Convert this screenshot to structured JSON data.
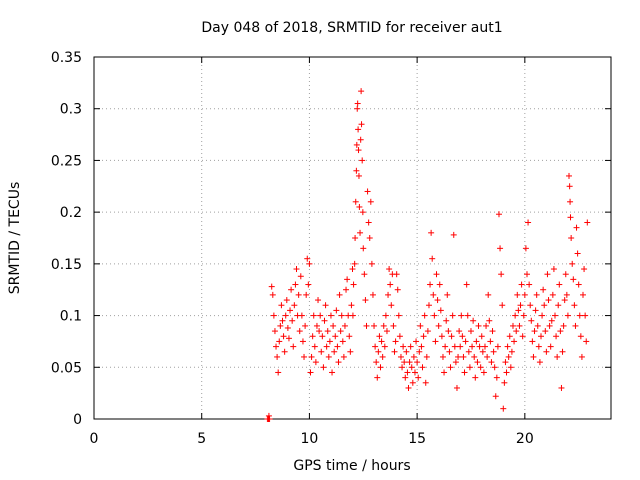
{
  "chart_data": {
    "type": "scatter",
    "title": "Day 048 of 2018, SRMTID for receiver aut1",
    "xlabel": "GPS time / hours",
    "ylabel": "SRMTID / TECUs",
    "xlim": [
      0,
      24
    ],
    "ylim": [
      0,
      0.35
    ],
    "xticks": [
      0,
      5,
      10,
      15,
      20
    ],
    "xtick_labels": [
      "0",
      "5",
      "10",
      "15",
      "20"
    ],
    "yticks": [
      0,
      0.05,
      0.1,
      0.15,
      0.2,
      0.25,
      0.3,
      0.35
    ],
    "ytick_labels": [
      "0",
      "0.05",
      "0.1",
      "0.15",
      "0.2",
      "0.25",
      "0.3",
      "0.35"
    ],
    "grid": true,
    "marker": "plus",
    "color": "#ff0000",
    "series": [
      {
        "name": "SRMTID",
        "points": [
          [
            8.05,
            0.0
          ],
          [
            8.1,
            0.0
          ],
          [
            8.15,
            0.0
          ],
          [
            8.12,
            0.003
          ],
          [
            8.25,
            0.128
          ],
          [
            8.3,
            0.12
          ],
          [
            8.35,
            0.1
          ],
          [
            8.4,
            0.085
          ],
          [
            8.45,
            0.07
          ],
          [
            8.5,
            0.06
          ],
          [
            8.55,
            0.045
          ],
          [
            8.6,
            0.075
          ],
          [
            8.65,
            0.09
          ],
          [
            8.7,
            0.11
          ],
          [
            8.75,
            0.095
          ],
          [
            8.8,
            0.08
          ],
          [
            8.85,
            0.065
          ],
          [
            8.9,
            0.1
          ],
          [
            8.95,
            0.115
          ],
          [
            9.0,
            0.088
          ],
          [
            9.05,
            0.078
          ],
          [
            9.1,
            0.105
          ],
          [
            9.15,
            0.125
          ],
          [
            9.2,
            0.095
          ],
          [
            9.25,
            0.07
          ],
          [
            9.3,
            0.11
          ],
          [
            9.35,
            0.13
          ],
          [
            9.4,
            0.145
          ],
          [
            9.45,
            0.1
          ],
          [
            9.5,
            0.12
          ],
          [
            9.55,
            0.085
          ],
          [
            9.6,
            0.138
          ],
          [
            9.65,
            0.1
          ],
          [
            9.7,
            0.075
          ],
          [
            9.75,
            0.06
          ],
          [
            9.8,
            0.09
          ],
          [
            9.85,
            0.12
          ],
          [
            9.9,
            0.155
          ],
          [
            9.95,
            0.13
          ],
          [
            10.0,
            0.15
          ],
          [
            10.05,
            0.045
          ],
          [
            10.1,
            0.06
          ],
          [
            10.15,
            0.08
          ],
          [
            10.2,
            0.1
          ],
          [
            10.25,
            0.07
          ],
          [
            10.3,
            0.055
          ],
          [
            10.35,
            0.09
          ],
          [
            10.4,
            0.115
          ],
          [
            10.45,
            0.085
          ],
          [
            10.5,
            0.1
          ],
          [
            10.55,
            0.065
          ],
          [
            10.6,
            0.08
          ],
          [
            10.65,
            0.05
          ],
          [
            10.7,
            0.095
          ],
          [
            10.75,
            0.11
          ],
          [
            10.8,
            0.07
          ],
          [
            10.85,
            0.085
          ],
          [
            10.9,
            0.06
          ],
          [
            10.95,
            0.075
          ],
          [
            11.0,
            0.1
          ],
          [
            11.05,
            0.045
          ],
          [
            11.1,
            0.09
          ],
          [
            11.15,
            0.065
          ],
          [
            11.2,
            0.08
          ],
          [
            11.25,
            0.105
          ],
          [
            11.3,
            0.07
          ],
          [
            11.35,
            0.055
          ],
          [
            11.4,
            0.12
          ],
          [
            11.45,
            0.085
          ],
          [
            11.5,
            0.1
          ],
          [
            11.55,
            0.075
          ],
          [
            11.6,
            0.06
          ],
          [
            11.65,
            0.09
          ],
          [
            11.7,
            0.125
          ],
          [
            11.75,
            0.135
          ],
          [
            11.8,
            0.1
          ],
          [
            11.85,
            0.08
          ],
          [
            11.9,
            0.065
          ],
          [
            11.95,
            0.11
          ],
          [
            12.0,
            0.145
          ],
          [
            12.02,
            0.1
          ],
          [
            12.05,
            0.13
          ],
          [
            12.1,
            0.15
          ],
          [
            12.12,
            0.175
          ],
          [
            12.15,
            0.21
          ],
          [
            12.18,
            0.24
          ],
          [
            12.2,
            0.265
          ],
          [
            12.22,
            0.3
          ],
          [
            12.24,
            0.305
          ],
          [
            12.26,
            0.28
          ],
          [
            12.28,
            0.26
          ],
          [
            12.3,
            0.235
          ],
          [
            12.32,
            0.205
          ],
          [
            12.35,
            0.18
          ],
          [
            12.38,
            0.27
          ],
          [
            12.4,
            0.317
          ],
          [
            12.42,
            0.285
          ],
          [
            12.45,
            0.25
          ],
          [
            12.48,
            0.2
          ],
          [
            12.5,
            0.165
          ],
          [
            12.55,
            0.14
          ],
          [
            12.6,
            0.115
          ],
          [
            12.65,
            0.09
          ],
          [
            12.7,
            0.22
          ],
          [
            12.75,
            0.19
          ],
          [
            12.8,
            0.175
          ],
          [
            12.85,
            0.21
          ],
          [
            12.9,
            0.15
          ],
          [
            12.95,
            0.12
          ],
          [
            13.0,
            0.09
          ],
          [
            13.05,
            0.07
          ],
          [
            13.1,
            0.055
          ],
          [
            13.15,
            0.04
          ],
          [
            13.2,
            0.065
          ],
          [
            13.25,
            0.08
          ],
          [
            13.3,
            0.05
          ],
          [
            13.35,
            0.075
          ],
          [
            13.4,
            0.06
          ],
          [
            13.45,
            0.09
          ],
          [
            13.5,
            0.07
          ],
          [
            13.55,
            0.1
          ],
          [
            13.6,
            0.085
          ],
          [
            13.65,
            0.12
          ],
          [
            13.7,
            0.145
          ],
          [
            13.75,
            0.13
          ],
          [
            13.8,
            0.11
          ],
          [
            13.85,
            0.14
          ],
          [
            13.9,
            0.09
          ],
          [
            13.95,
            0.065
          ],
          [
            14.0,
            0.075
          ],
          [
            14.05,
            0.14
          ],
          [
            14.1,
            0.125
          ],
          [
            14.15,
            0.1
          ],
          [
            14.2,
            0.08
          ],
          [
            14.25,
            0.06
          ],
          [
            14.3,
            0.05
          ],
          [
            14.35,
            0.07
          ],
          [
            14.4,
            0.055
          ],
          [
            14.45,
            0.04
          ],
          [
            14.5,
            0.065
          ],
          [
            14.55,
            0.045
          ],
          [
            14.6,
            0.03
          ],
          [
            14.65,
            0.055
          ],
          [
            14.7,
            0.07
          ],
          [
            14.75,
            0.05
          ],
          [
            14.8,
            0.035
          ],
          [
            14.85,
            0.06
          ],
          [
            14.9,
            0.045
          ],
          [
            14.95,
            0.075
          ],
          [
            15.0,
            0.055
          ],
          [
            15.05,
            0.04
          ],
          [
            15.1,
            0.065
          ],
          [
            15.15,
            0.09
          ],
          [
            15.2,
            0.07
          ],
          [
            15.25,
            0.05
          ],
          [
            15.3,
            0.08
          ],
          [
            15.35,
            0.1
          ],
          [
            15.4,
            0.035
          ],
          [
            15.45,
            0.06
          ],
          [
            15.5,
            0.085
          ],
          [
            15.55,
            0.11
          ],
          [
            15.6,
            0.13
          ],
          [
            15.65,
            0.18
          ],
          [
            15.7,
            0.155
          ],
          [
            15.75,
            0.12
          ],
          [
            15.8,
            0.1
          ],
          [
            15.85,
            0.075
          ],
          [
            15.9,
            0.14
          ],
          [
            15.95,
            0.115
          ],
          [
            16.0,
            0.09
          ],
          [
            16.05,
            0.13
          ],
          [
            16.1,
            0.105
          ],
          [
            16.15,
            0.08
          ],
          [
            16.2,
            0.06
          ],
          [
            16.25,
            0.045
          ],
          [
            16.3,
            0.07
          ],
          [
            16.35,
            0.095
          ],
          [
            16.4,
            0.12
          ],
          [
            16.45,
            0.085
          ],
          [
            16.5,
            0.065
          ],
          [
            16.55,
            0.05
          ],
          [
            16.6,
            0.08
          ],
          [
            16.65,
            0.1
          ],
          [
            16.7,
            0.178
          ],
          [
            16.75,
            0.07
          ],
          [
            16.8,
            0.055
          ],
          [
            16.85,
            0.03
          ],
          [
            16.9,
            0.06
          ],
          [
            16.95,
            0.085
          ],
          [
            17.0,
            0.07
          ],
          [
            17.05,
            0.1
          ],
          [
            17.1,
            0.08
          ],
          [
            17.15,
            0.06
          ],
          [
            17.2,
            0.045
          ],
          [
            17.25,
            0.075
          ],
          [
            17.3,
            0.13
          ],
          [
            17.35,
            0.1
          ],
          [
            17.4,
            0.065
          ],
          [
            17.45,
            0.05
          ],
          [
            17.5,
            0.085
          ],
          [
            17.55,
            0.07
          ],
          [
            17.6,
            0.095
          ],
          [
            17.65,
            0.06
          ],
          [
            17.7,
            0.04
          ],
          [
            17.75,
            0.075
          ],
          [
            17.8,
            0.055
          ],
          [
            17.85,
            0.09
          ],
          [
            17.9,
            0.07
          ],
          [
            17.95,
            0.05
          ],
          [
            18.0,
            0.08
          ],
          [
            18.05,
            0.065
          ],
          [
            18.1,
            0.045
          ],
          [
            18.15,
            0.07
          ],
          [
            18.2,
            0.09
          ],
          [
            18.25,
            0.06
          ],
          [
            18.3,
            0.12
          ],
          [
            18.35,
            0.095
          ],
          [
            18.4,
            0.075
          ],
          [
            18.45,
            0.055
          ],
          [
            18.5,
            0.085
          ],
          [
            18.55,
            0.065
          ],
          [
            18.6,
            0.05
          ],
          [
            18.65,
            0.022
          ],
          [
            18.7,
            0.04
          ],
          [
            18.75,
            0.07
          ],
          [
            18.8,
            0.198
          ],
          [
            18.85,
            0.165
          ],
          [
            18.9,
            0.14
          ],
          [
            18.95,
            0.11
          ],
          [
            19.0,
            0.01
          ],
          [
            19.05,
            0.035
          ],
          [
            19.1,
            0.055
          ],
          [
            19.15,
            0.045
          ],
          [
            19.2,
            0.07
          ],
          [
            19.25,
            0.06
          ],
          [
            19.3,
            0.08
          ],
          [
            19.35,
            0.05
          ],
          [
            19.4,
            0.065
          ],
          [
            19.45,
            0.09
          ],
          [
            19.5,
            0.075
          ],
          [
            19.55,
            0.1
          ],
          [
            19.6,
            0.085
          ],
          [
            19.65,
            0.12
          ],
          [
            19.7,
            0.105
          ],
          [
            19.75,
            0.09
          ],
          [
            19.8,
            0.11
          ],
          [
            19.85,
            0.13
          ],
          [
            19.9,
            0.08
          ],
          [
            19.95,
            0.1
          ],
          [
            20.0,
            0.12
          ],
          [
            20.05,
            0.165
          ],
          [
            20.1,
            0.14
          ],
          [
            20.15,
            0.19
          ],
          [
            20.2,
            0.13
          ],
          [
            20.25,
            0.11
          ],
          [
            20.3,
            0.095
          ],
          [
            20.35,
            0.075
          ],
          [
            20.4,
            0.06
          ],
          [
            20.45,
            0.085
          ],
          [
            20.5,
            0.105
          ],
          [
            20.55,
            0.12
          ],
          [
            20.6,
            0.09
          ],
          [
            20.65,
            0.07
          ],
          [
            20.7,
            0.055
          ],
          [
            20.75,
            0.08
          ],
          [
            20.8,
            0.1
          ],
          [
            20.85,
            0.125
          ],
          [
            20.9,
            0.11
          ],
          [
            20.95,
            0.085
          ],
          [
            21.0,
            0.065
          ],
          [
            21.05,
            0.14
          ],
          [
            21.1,
            0.115
          ],
          [
            21.15,
            0.09
          ],
          [
            21.2,
            0.07
          ],
          [
            21.25,
            0.095
          ],
          [
            21.3,
            0.12
          ],
          [
            21.35,
            0.145
          ],
          [
            21.4,
            0.1
          ],
          [
            21.45,
            0.08
          ],
          [
            21.5,
            0.06
          ],
          [
            21.55,
            0.11
          ],
          [
            21.6,
            0.13
          ],
          [
            21.65,
            0.085
          ],
          [
            21.7,
            0.03
          ],
          [
            21.75,
            0.065
          ],
          [
            21.8,
            0.09
          ],
          [
            21.85,
            0.115
          ],
          [
            21.9,
            0.14
          ],
          [
            21.95,
            0.12
          ],
          [
            22.0,
            0.1
          ],
          [
            22.05,
            0.235
          ],
          [
            22.08,
            0.225
          ],
          [
            22.1,
            0.21
          ],
          [
            22.12,
            0.195
          ],
          [
            22.15,
            0.175
          ],
          [
            22.2,
            0.15
          ],
          [
            22.25,
            0.135
          ],
          [
            22.3,
            0.11
          ],
          [
            22.35,
            0.09
          ],
          [
            22.4,
            0.185
          ],
          [
            22.45,
            0.16
          ],
          [
            22.5,
            0.13
          ],
          [
            22.55,
            0.1
          ],
          [
            22.6,
            0.08
          ],
          [
            22.65,
            0.06
          ],
          [
            22.7,
            0.12
          ],
          [
            22.75,
            0.145
          ],
          [
            22.8,
            0.1
          ],
          [
            22.85,
            0.075
          ],
          [
            22.9,
            0.19
          ]
        ]
      }
    ]
  }
}
